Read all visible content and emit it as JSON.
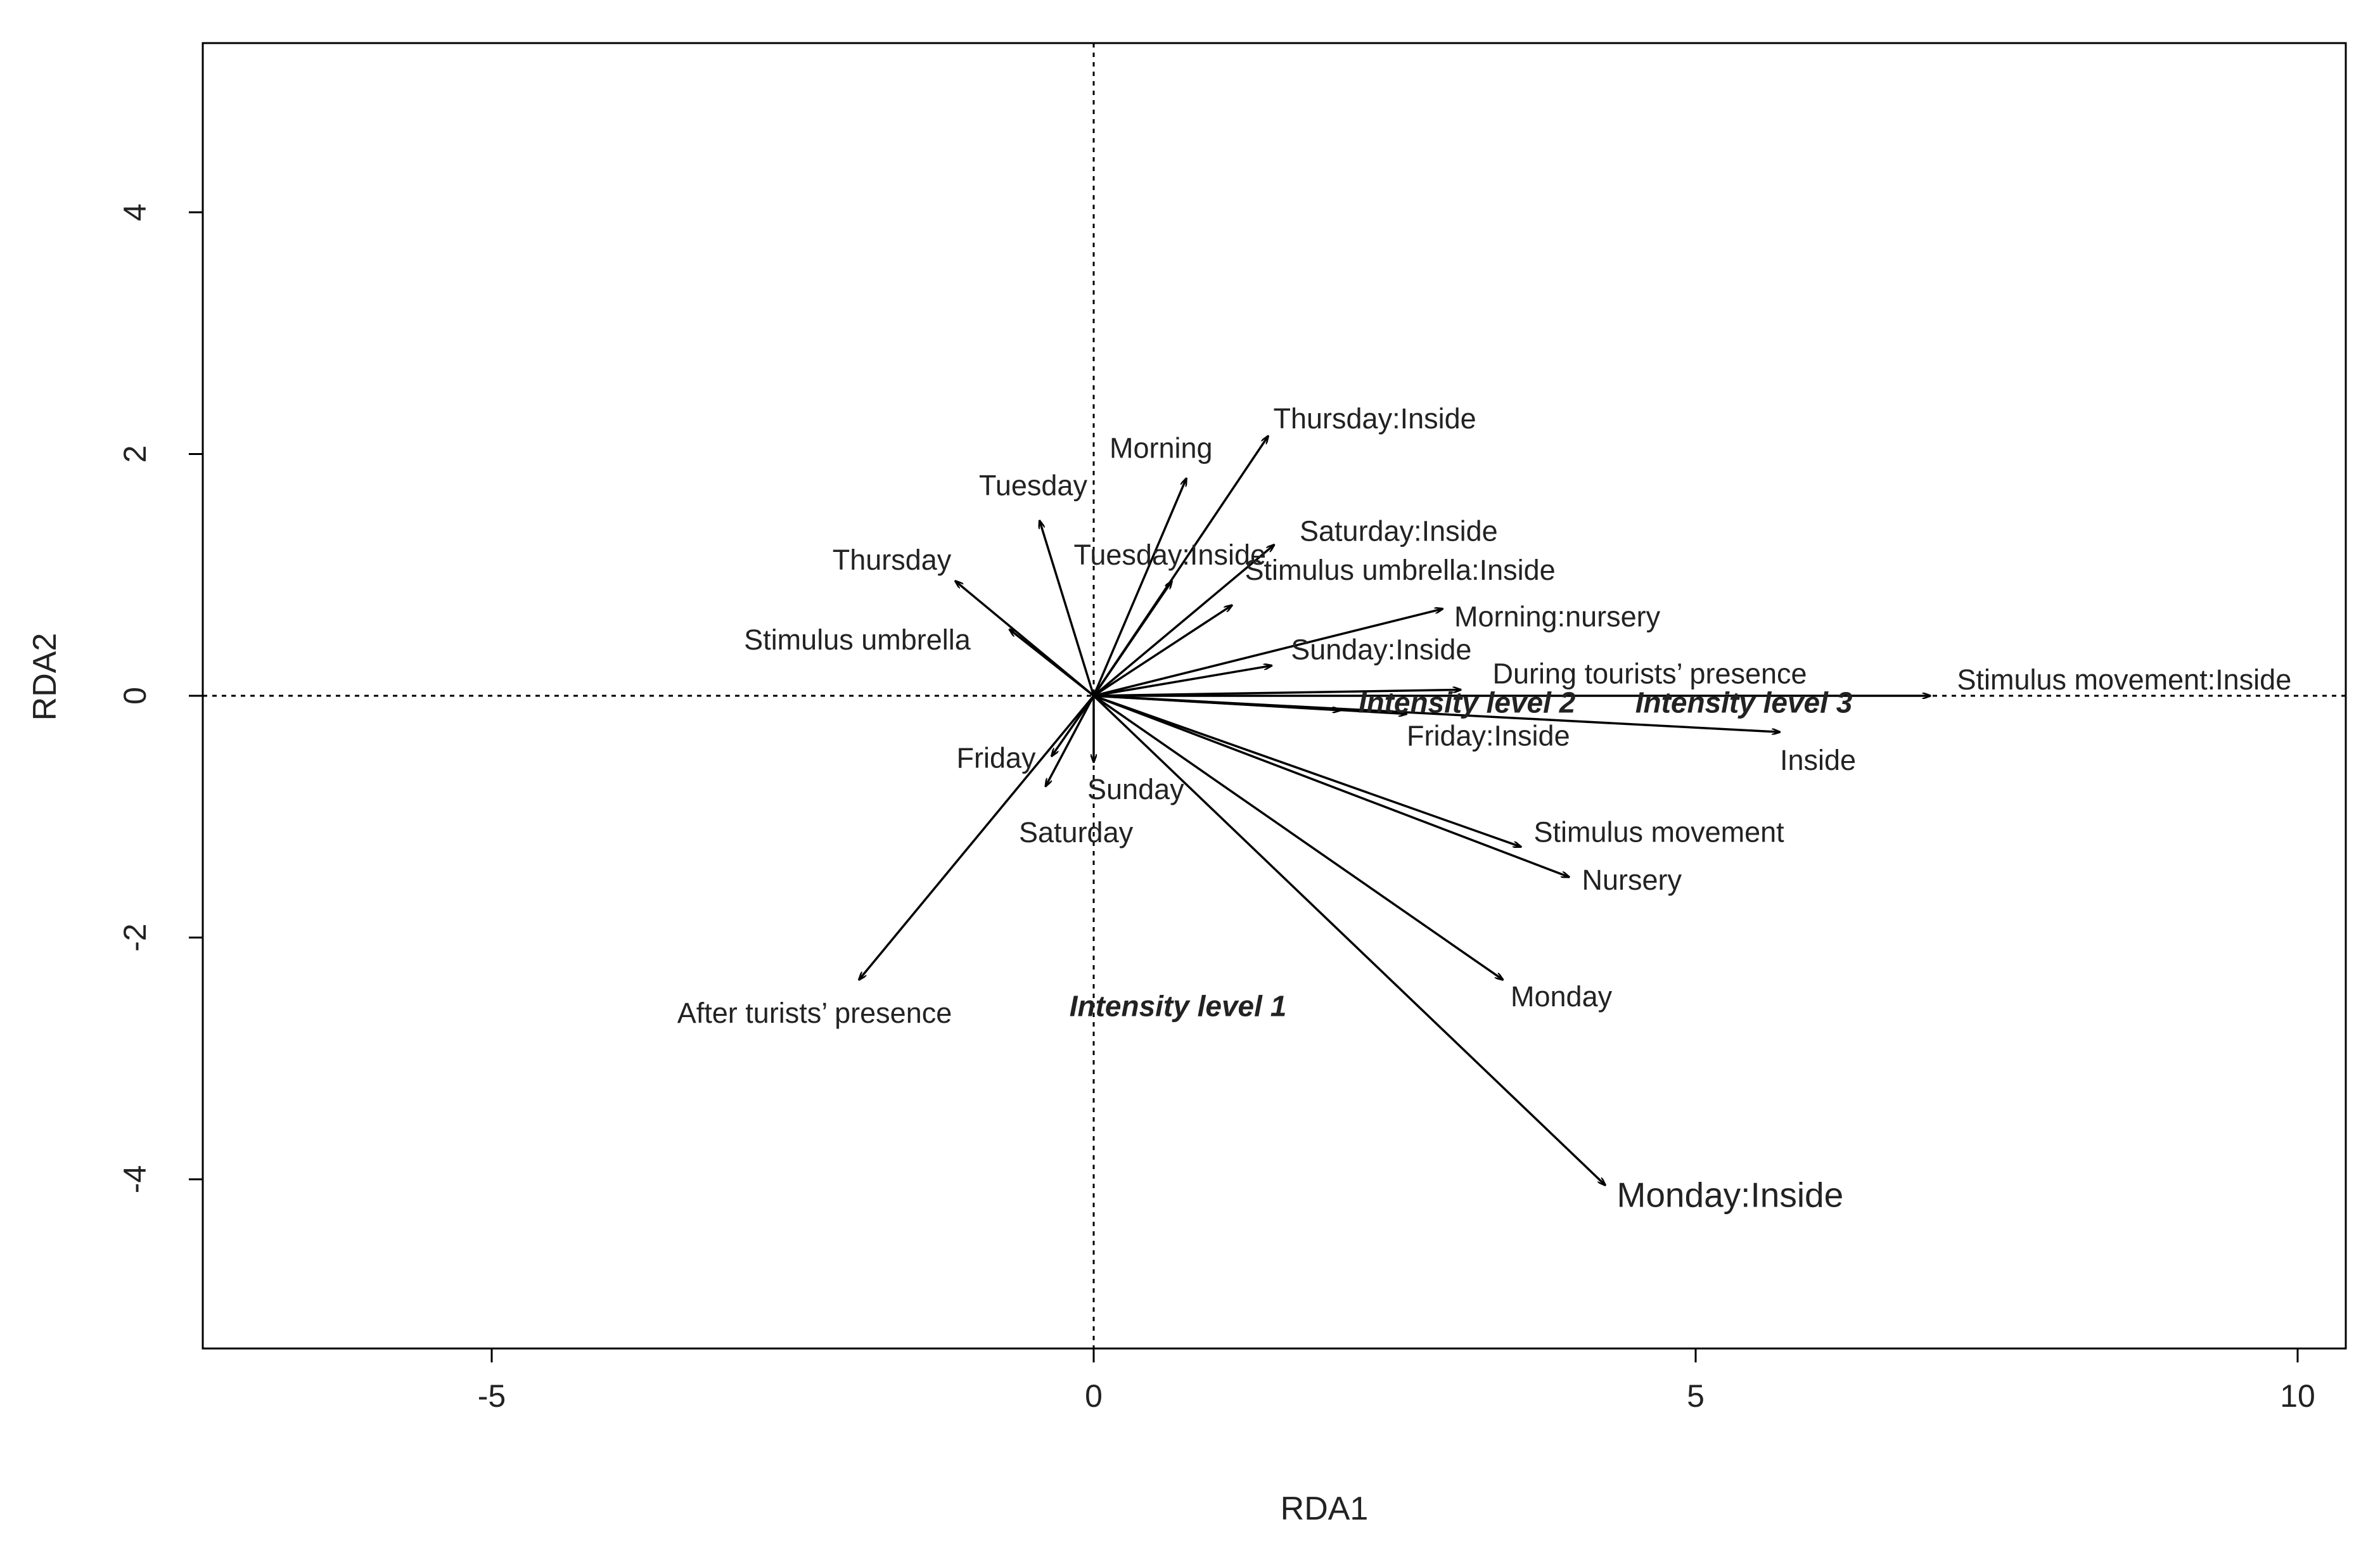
{
  "chart_data": {
    "type": "scatter",
    "subtype": "rda-biplot",
    "title": "",
    "xlabel": "RDA1",
    "ylabel": "RDA2",
    "xlim": [
      -7.4,
      10.4
    ],
    "ylim": [
      -5.4,
      5.4
    ],
    "xticks": [
      -5,
      0,
      5,
      10
    ],
    "yticks": [
      4,
      2,
      0,
      -2,
      -4
    ],
    "xtick_labels": [
      "-5",
      "0",
      "5",
      "10"
    ],
    "ytick_labels": [
      "4",
      "2",
      "0",
      "-2",
      "-4"
    ],
    "reference_lines": {
      "x": 0,
      "y": 0,
      "style": "dotted"
    },
    "grid": false,
    "legend": "none",
    "vectors": [
      {
        "label": "Thursday:Inside",
        "x": 1.45,
        "y": 2.15
      },
      {
        "label": "Morning",
        "x": 0.77,
        "y": 1.8
      },
      {
        "label": "Tuesday",
        "x": -0.45,
        "y": 1.45
      },
      {
        "label": "Tuesday:Inside",
        "x": 0.65,
        "y": 0.95
      },
      {
        "label": "Saturday:Inside",
        "x": 1.5,
        "y": 1.25
      },
      {
        "label": "Thursday",
        "x": -1.15,
        "y": 0.95
      },
      {
        "label": "Stimulus umbrella:Inside",
        "x": 1.15,
        "y": 0.75
      },
      {
        "label": "Stimulus umbrella",
        "x": -0.7,
        "y": 0.55
      },
      {
        "label": "Morning:nursery",
        "x": 2.9,
        "y": 0.72
      },
      {
        "label": "Sunday:Inside",
        "x": 1.48,
        "y": 0.25
      },
      {
        "label": "During tourists’ presence",
        "x": 3.05,
        "y": 0.05
      },
      {
        "label": "Stimulus movement:Inside",
        "x": 6.95,
        "y": 0.0
      },
      {
        "label": "Intensity level 2",
        "x": 2.05,
        "y": -0.12
      },
      {
        "label": "Inside",
        "x": 5.7,
        "y": -0.3
      },
      {
        "label": "Friday:Inside",
        "x": 2.6,
        "y": -0.15
      },
      {
        "label": "Friday",
        "x": -0.35,
        "y": -0.5
      },
      {
        "label": "Sunday",
        "x": 0.0,
        "y": -0.55
      },
      {
        "label": "Saturday",
        "x": -0.4,
        "y": -0.75
      },
      {
        "label": "Stimulus movement",
        "x": 3.55,
        "y": -1.25
      },
      {
        "label": "Nursery",
        "x": 3.95,
        "y": -1.5
      },
      {
        "label": "After turists’ presence",
        "x": -1.95,
        "y": -2.35
      },
      {
        "label": "Monday",
        "x": 3.4,
        "y": -2.35
      },
      {
        "label": "Monday:Inside",
        "x": 4.25,
        "y": -4.05
      }
    ],
    "level_labels": [
      {
        "label": "Intensity level 1",
        "x": 0.7,
        "y": -2.65
      },
      {
        "label": "Intensity level 2",
        "x": 3.1,
        "y": -0.14
      },
      {
        "label": "Intensity level 3",
        "x": 5.4,
        "y": -0.14
      }
    ]
  }
}
